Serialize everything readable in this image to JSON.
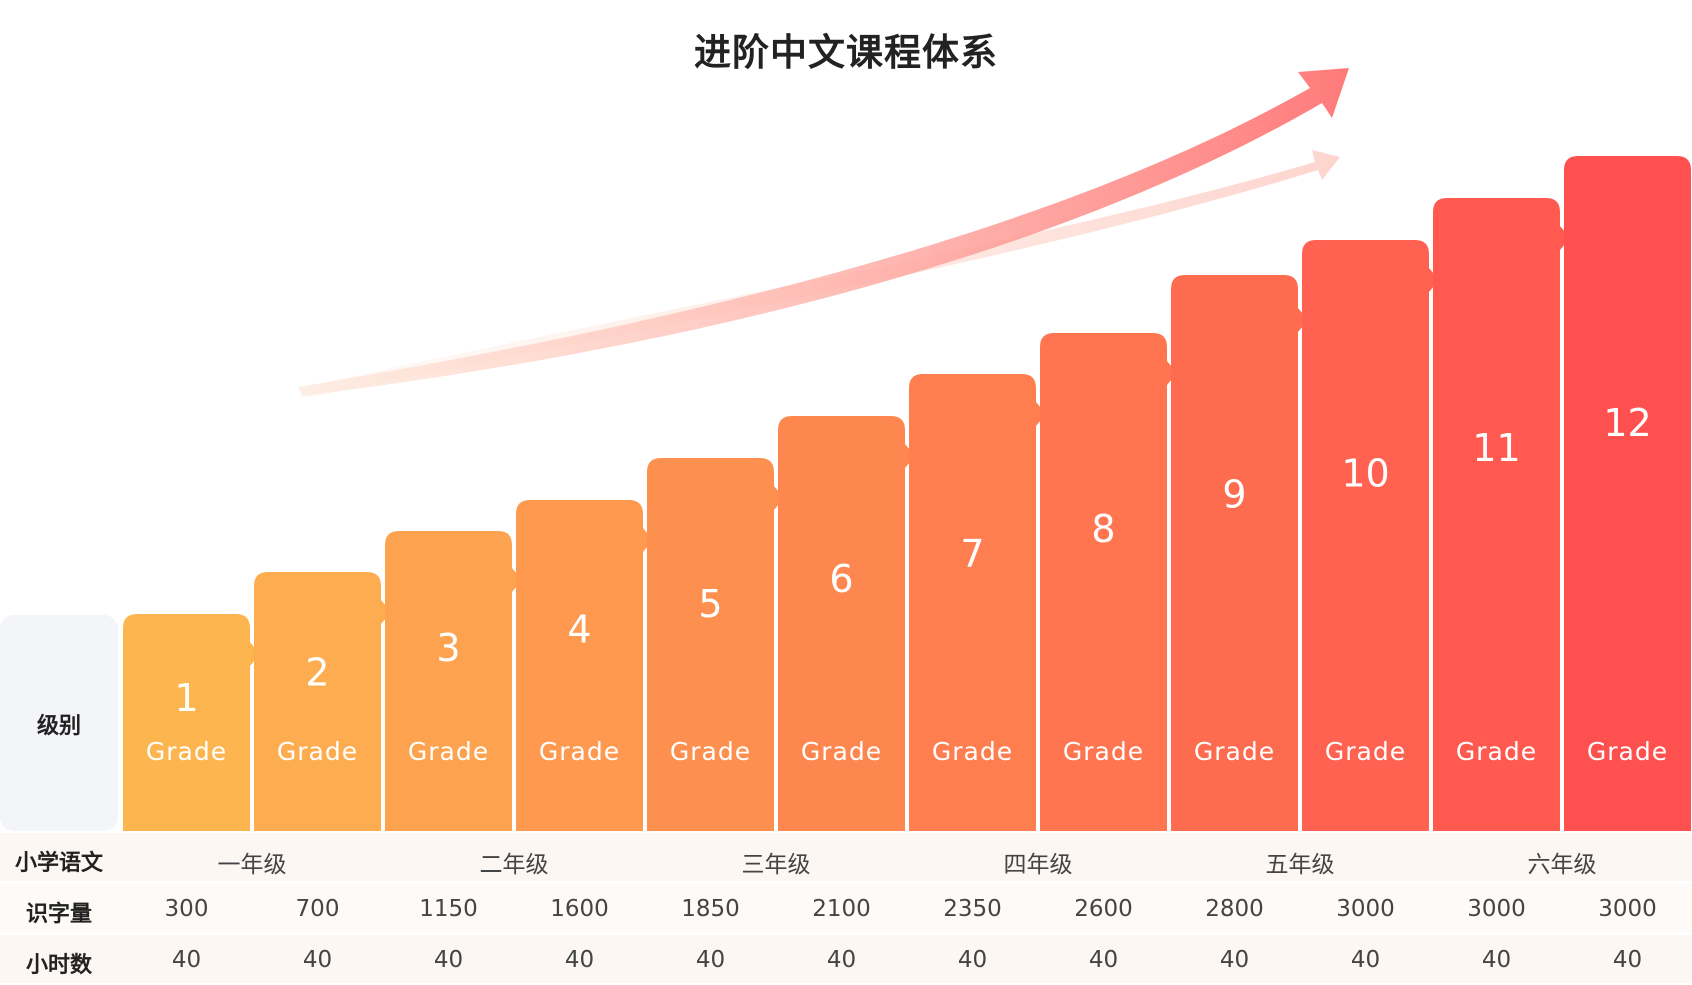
{
  "title": "进阶中文课程体系",
  "row_labels": {
    "grade": "级别",
    "chinese": "小学语文",
    "characters": "识字量",
    "hours": "小时数"
  },
  "grade_word": "Grade",
  "grades": [
    {
      "num": "1",
      "chars": "300",
      "hours": "40"
    },
    {
      "num": "2",
      "chars": "700",
      "hours": "40"
    },
    {
      "num": "3",
      "chars": "1150",
      "hours": "40"
    },
    {
      "num": "4",
      "chars": "1600",
      "hours": "40"
    },
    {
      "num": "5",
      "chars": "1850",
      "hours": "40"
    },
    {
      "num": "6",
      "chars": "2100",
      "hours": "40"
    },
    {
      "num": "7",
      "chars": "2350",
      "hours": "40"
    },
    {
      "num": "8",
      "chars": "2600",
      "hours": "40"
    },
    {
      "num": "9",
      "chars": "2800",
      "hours": "40"
    },
    {
      "num": "10",
      "chars": "3000",
      "hours": "40"
    },
    {
      "num": "11",
      "chars": "3000",
      "hours": "40"
    },
    {
      "num": "12",
      "chars": "3000",
      "hours": "40"
    }
  ],
  "school_years": [
    "一年级",
    "二年级",
    "三年级",
    "四年级",
    "五年级",
    "六年级"
  ],
  "colors": {
    "start": "#fdb54f",
    "end": "#ff5050",
    "label_bg": "#f4f5f9",
    "row_bg": "#fdf6f2"
  }
}
